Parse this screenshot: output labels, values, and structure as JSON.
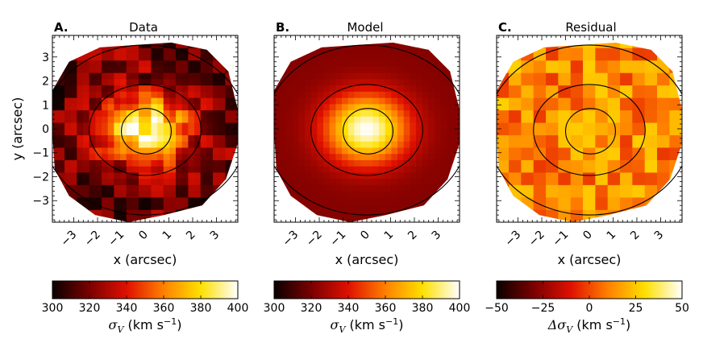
{
  "chart_data": [
    {
      "type": "heatmap",
      "panel_letter": "A.",
      "title": "Data",
      "xlabel": "x (arcsec)",
      "ylabel": "y (arcsec)",
      "x_ticks": [
        "−3",
        "−2",
        "−1",
        "0",
        "1",
        "2",
        "3"
      ],
      "y_ticks": [
        "3",
        "2",
        "1",
        "0",
        "−1",
        "−2",
        "−3"
      ],
      "xlim": [
        -3.9,
        3.9
      ],
      "ylim": [
        -3.9,
        3.9
      ],
      "colormap": "hot",
      "texture": "noisy",
      "colorbar": {
        "ticks": [
          "300",
          "320",
          "340",
          "360",
          "380",
          "400"
        ],
        "range": [
          300,
          400
        ],
        "label_main": "σ",
        "label_sub": "V",
        "label_rest": " (km s",
        "label_exp": "−1",
        "label_end": ")"
      }
    },
    {
      "type": "heatmap",
      "panel_letter": "B.",
      "title": "Model",
      "xlabel": "x (arcsec)",
      "ylabel": "",
      "x_ticks": [
        "−3",
        "−2",
        "−1",
        "0",
        "1",
        "2",
        "3"
      ],
      "xlim": [
        -3.9,
        3.9
      ],
      "ylim": [
        -3.9,
        3.9
      ],
      "colormap": "hot",
      "texture": "smooth",
      "colorbar": {
        "ticks": [
          "300",
          "320",
          "340",
          "360",
          "380",
          "400"
        ],
        "range": [
          300,
          400
        ],
        "label_main": "σ",
        "label_sub": "V",
        "label_rest": " (km s",
        "label_exp": "−1",
        "label_end": ")"
      }
    },
    {
      "type": "heatmap",
      "panel_letter": "C.",
      "title": "Residual",
      "xlabel": "x (arcsec)",
      "ylabel": "",
      "x_ticks": [
        "−3",
        "−2",
        "−1",
        "0",
        "1",
        "2",
        "3"
      ],
      "xlim": [
        -3.9,
        3.9
      ],
      "ylim": [
        -3.9,
        3.9
      ],
      "colormap": "hot",
      "texture": "residual",
      "colorbar": {
        "ticks": [
          "−50",
          "−25",
          "0",
          "25",
          "50"
        ],
        "range": [
          -50,
          50
        ],
        "label_main": "Δσ",
        "label_sub": "V",
        "label_rest": " (km s",
        "label_exp": "−1",
        "label_end": ")"
      }
    }
  ],
  "colors": {
    "hot_0": "#0b0000",
    "hot_1": "#7a0000",
    "hot_2": "#e01000",
    "hot_3": "#ff8000",
    "hot_4": "#ffe000",
    "hot_5": "#ffffff"
  }
}
